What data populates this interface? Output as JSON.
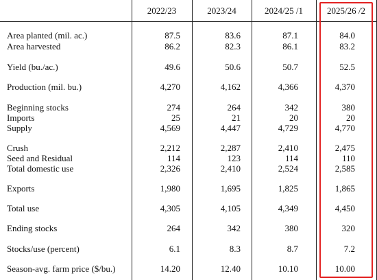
{
  "table": {
    "columns": [
      "2022/23",
      "2023/24",
      "2024/25 /1",
      "2025/26 /2"
    ],
    "rows": [
      {
        "label": "Area planted (mil. ac.)",
        "values": [
          "87.5",
          "83.6",
          "87.1",
          "84.0"
        ]
      },
      {
        "label": "Area harvested",
        "values": [
          "86.2",
          "82.3",
          "86.1",
          "83.2"
        ]
      },
      {
        "label": "Yield (bu./ac.)",
        "values": [
          "49.6",
          "50.6",
          "50.7",
          "52.5"
        ]
      },
      {
        "label": "Production (mil. bu.)",
        "values": [
          "4,270",
          "4,162",
          "4,366",
          "4,370"
        ]
      },
      {
        "label": "Beginning stocks",
        "values": [
          "274",
          "264",
          "342",
          "380"
        ]
      },
      {
        "label": "Imports",
        "values": [
          "25",
          "21",
          "20",
          "20"
        ]
      },
      {
        "label": "Supply",
        "values": [
          "4,569",
          "4,447",
          "4,729",
          "4,770"
        ]
      },
      {
        "label": "Crush",
        "values": [
          "2,212",
          "2,287",
          "2,410",
          "2,475"
        ]
      },
      {
        "label": "Seed and Residual",
        "values": [
          "114",
          "123",
          "114",
          "110"
        ]
      },
      {
        "label": "Total domestic use",
        "values": [
          "2,326",
          "2,410",
          "2,524",
          "2,585"
        ]
      },
      {
        "label": "Exports",
        "values": [
          "1,980",
          "1,695",
          "1,825",
          "1,865"
        ]
      },
      {
        "label": "Total use",
        "values": [
          "4,305",
          "4,105",
          "4,349",
          "4,450"
        ]
      },
      {
        "label": "Ending stocks",
        "values": [
          "264",
          "342",
          "380",
          "320"
        ]
      },
      {
        "label": "Stocks/use (percent)",
        "values": [
          "6.1",
          "8.3",
          "8.7",
          "7.2"
        ]
      },
      {
        "label": "Season-avg. farm price ($/bu.)",
        "values": [
          "14.20",
          "12.40",
          "10.10",
          "10.00"
        ]
      }
    ]
  },
  "highlight_color": "#e32222"
}
